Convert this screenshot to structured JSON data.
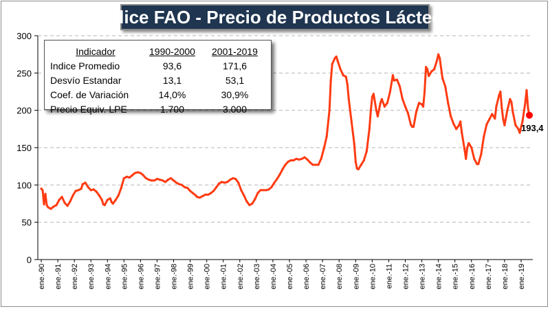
{
  "title": "Indice FAO - Precio de Productos Lácteos",
  "table": {
    "headers": [
      "Indicador",
      "1990-2000",
      "2001-2019"
    ],
    "rows": [
      [
        "Indice Promedio",
        "93,6",
        "171,6"
      ],
      [
        "Desvío Estandar",
        "13,1",
        "53,1"
      ],
      [
        "Coef. de Variación",
        "14,0%",
        "30,9%"
      ],
      [
        "Precio Equiv. LPE",
        "1.700",
        "3.000"
      ]
    ]
  },
  "chart_data": {
    "type": "line",
    "title": "Indice FAO - Precio de Productos Lácteos",
    "ylim": [
      0,
      300
    ],
    "yticks": [
      0,
      50,
      100,
      150,
      200,
      250,
      300
    ],
    "xtick_labels": [
      "ene.-90",
      "ene.-91",
      "ene.-92",
      "ene.-93",
      "ene.-94",
      "ene.-95",
      "ene.-96",
      "ene.-97",
      "ene.-98",
      "ene.-99",
      "ene.-00",
      "ene.-01",
      "ene.-02",
      "ene.-03",
      "ene.-04",
      "ene.-05",
      "ene.-06",
      "ene.-07",
      "ene.-08",
      "ene.-09",
      "ene.-10",
      "ene.-11",
      "ene.-12",
      "ene.-13",
      "ene.-14",
      "ene.-15",
      "ene.-16",
      "ene.-17",
      "ene.-18",
      "ene.-19"
    ],
    "x_start": "1990-01",
    "x_end": "2019-07",
    "grid": "horizontal dashed",
    "line_color": "#ff3b12",
    "series": [
      {
        "values": [
          [
            "1990-01",
            95
          ],
          [
            "1990-02",
            93
          ],
          [
            "1990-03",
            74
          ],
          [
            "1990-04",
            88
          ],
          [
            "1990-05",
            73
          ],
          [
            "1990-06",
            70
          ],
          [
            "1990-08",
            68
          ],
          [
            "1990-10",
            71
          ],
          [
            "1990-12",
            73
          ],
          [
            "1991-02",
            80
          ],
          [
            "1991-04",
            84
          ],
          [
            "1991-06",
            76
          ],
          [
            "1991-08",
            72
          ],
          [
            "1991-10",
            78
          ],
          [
            "1991-12",
            86
          ],
          [
            "1992-02",
            92
          ],
          [
            "1992-04",
            93
          ],
          [
            "1992-06",
            95
          ],
          [
            "1992-07",
            101
          ],
          [
            "1992-09",
            103
          ],
          [
            "1992-11",
            97
          ],
          [
            "1993-01",
            93
          ],
          [
            "1993-03",
            94
          ],
          [
            "1993-05",
            91
          ],
          [
            "1993-07",
            86
          ],
          [
            "1993-09",
            80
          ],
          [
            "1993-10",
            74
          ],
          [
            "1993-11",
            73
          ],
          [
            "1994-01",
            80
          ],
          [
            "1994-03",
            82
          ],
          [
            "1994-04",
            77
          ],
          [
            "1994-05",
            75
          ],
          [
            "1994-07",
            80
          ],
          [
            "1994-09",
            86
          ],
          [
            "1994-11",
            96
          ],
          [
            "1995-01",
            109
          ],
          [
            "1995-03",
            111
          ],
          [
            "1995-05",
            110
          ],
          [
            "1995-07",
            113
          ],
          [
            "1995-09",
            116
          ],
          [
            "1995-11",
            117
          ],
          [
            "1996-01",
            116
          ],
          [
            "1996-03",
            113
          ],
          [
            "1996-05",
            109
          ],
          [
            "1996-07",
            107
          ],
          [
            "1996-09",
            106
          ],
          [
            "1996-11",
            106
          ],
          [
            "1997-01",
            108
          ],
          [
            "1997-03",
            107
          ],
          [
            "1997-05",
            106
          ],
          [
            "1997-07",
            104
          ],
          [
            "1997-09",
            107
          ],
          [
            "1997-11",
            109
          ],
          [
            "1998-01",
            106
          ],
          [
            "1998-03",
            103
          ],
          [
            "1998-05",
            101
          ],
          [
            "1998-07",
            100
          ],
          [
            "1998-09",
            97
          ],
          [
            "1998-11",
            96
          ],
          [
            "1999-01",
            92
          ],
          [
            "1999-03",
            89
          ],
          [
            "1999-05",
            86
          ],
          [
            "1999-06",
            84
          ],
          [
            "1999-08",
            83
          ],
          [
            "1999-10",
            85
          ],
          [
            "1999-12",
            87
          ],
          [
            "2000-02",
            87
          ],
          [
            "2000-04",
            89
          ],
          [
            "2000-06",
            92
          ],
          [
            "2000-08",
            97
          ],
          [
            "2000-10",
            102
          ],
          [
            "2000-12",
            104
          ],
          [
            "2001-02",
            103
          ],
          [
            "2001-04",
            104
          ],
          [
            "2001-06",
            107
          ],
          [
            "2001-08",
            109
          ],
          [
            "2001-10",
            108
          ],
          [
            "2001-12",
            103
          ],
          [
            "2002-02",
            93
          ],
          [
            "2002-04",
            86
          ],
          [
            "2002-06",
            78
          ],
          [
            "2002-08",
            73
          ],
          [
            "2002-10",
            75
          ],
          [
            "2002-12",
            81
          ],
          [
            "2003-02",
            89
          ],
          [
            "2003-04",
            93
          ],
          [
            "2003-06",
            93
          ],
          [
            "2003-08",
            93
          ],
          [
            "2003-10",
            94
          ],
          [
            "2003-12",
            97
          ],
          [
            "2004-02",
            103
          ],
          [
            "2004-04",
            108
          ],
          [
            "2004-06",
            114
          ],
          [
            "2004-08",
            121
          ],
          [
            "2004-10",
            127
          ],
          [
            "2004-12",
            131
          ],
          [
            "2005-02",
            133
          ],
          [
            "2005-04",
            133
          ],
          [
            "2005-06",
            135
          ],
          [
            "2005-08",
            134
          ],
          [
            "2005-10",
            135
          ],
          [
            "2005-12",
            137
          ],
          [
            "2006-02",
            134
          ],
          [
            "2006-04",
            130
          ],
          [
            "2006-06",
            127
          ],
          [
            "2006-08",
            127
          ],
          [
            "2006-10",
            127
          ],
          [
            "2006-12",
            135
          ],
          [
            "2007-02",
            149
          ],
          [
            "2007-04",
            165
          ],
          [
            "2007-06",
            200
          ],
          [
            "2007-07",
            240
          ],
          [
            "2007-08",
            262
          ],
          [
            "2007-10",
            270
          ],
          [
            "2007-11",
            272
          ],
          [
            "2007-12",
            266
          ],
          [
            "2008-02",
            255
          ],
          [
            "2008-04",
            247
          ],
          [
            "2008-06",
            245
          ],
          [
            "2008-07",
            235
          ],
          [
            "2008-08",
            215
          ],
          [
            "2008-10",
            185
          ],
          [
            "2008-12",
            155
          ],
          [
            "2009-01",
            131
          ],
          [
            "2009-02",
            122
          ],
          [
            "2009-03",
            121
          ],
          [
            "2009-05",
            127
          ],
          [
            "2009-07",
            133
          ],
          [
            "2009-09",
            145
          ],
          [
            "2009-11",
            175
          ],
          [
            "2009-12",
            200
          ],
          [
            "2010-01",
            218
          ],
          [
            "2010-02",
            222
          ],
          [
            "2010-04",
            200
          ],
          [
            "2010-05",
            192
          ],
          [
            "2010-07",
            210
          ],
          [
            "2010-08",
            215
          ],
          [
            "2010-10",
            205
          ],
          [
            "2010-12",
            210
          ],
          [
            "2011-02",
            225
          ],
          [
            "2011-04",
            247
          ],
          [
            "2011-05",
            240
          ],
          [
            "2011-07",
            241
          ],
          [
            "2011-09",
            232
          ],
          [
            "2011-11",
            215
          ],
          [
            "2012-01",
            205
          ],
          [
            "2012-03",
            196
          ],
          [
            "2012-05",
            181
          ],
          [
            "2012-06",
            178
          ],
          [
            "2012-07",
            178
          ],
          [
            "2012-09",
            198
          ],
          [
            "2012-11",
            210
          ],
          [
            "2013-01",
            208
          ],
          [
            "2013-02",
            205
          ],
          [
            "2013-03",
            225
          ],
          [
            "2013-04",
            258
          ],
          [
            "2013-05",
            255
          ],
          [
            "2013-06",
            246
          ],
          [
            "2013-08",
            252
          ],
          [
            "2013-10",
            255
          ],
          [
            "2013-12",
            267
          ],
          [
            "2014-01",
            275
          ],
          [
            "2014-02",
            270
          ],
          [
            "2014-04",
            243
          ],
          [
            "2014-06",
            232
          ],
          [
            "2014-08",
            210
          ],
          [
            "2014-10",
            192
          ],
          [
            "2014-12",
            182
          ],
          [
            "2015-02",
            175
          ],
          [
            "2015-04",
            180
          ],
          [
            "2015-05",
            185
          ],
          [
            "2015-06",
            170
          ],
          [
            "2015-08",
            148
          ],
          [
            "2015-09",
            135
          ],
          [
            "2015-10",
            150
          ],
          [
            "2015-11",
            156
          ],
          [
            "2016-01",
            150
          ],
          [
            "2016-03",
            135
          ],
          [
            "2016-05",
            128
          ],
          [
            "2016-06",
            128
          ],
          [
            "2016-08",
            141
          ],
          [
            "2016-10",
            165
          ],
          [
            "2016-12",
            181
          ],
          [
            "2017-02",
            188
          ],
          [
            "2017-04",
            195
          ],
          [
            "2017-06",
            189
          ],
          [
            "2017-07",
            205
          ],
          [
            "2017-09",
            220
          ],
          [
            "2017-10",
            225
          ],
          [
            "2017-11",
            203
          ],
          [
            "2017-12",
            188
          ],
          [
            "2018-01",
            180
          ],
          [
            "2018-03",
            200
          ],
          [
            "2018-05",
            215
          ],
          [
            "2018-06",
            211
          ],
          [
            "2018-07",
            198
          ],
          [
            "2018-09",
            180
          ],
          [
            "2018-11",
            175
          ],
          [
            "2018-12",
            170
          ],
          [
            "2019-02",
            185
          ],
          [
            "2019-04",
            210
          ],
          [
            "2019-05",
            227
          ],
          [
            "2019-06",
            203
          ],
          [
            "2019-07",
            193.4
          ]
        ]
      }
    ],
    "last_point_label": "193,4"
  }
}
